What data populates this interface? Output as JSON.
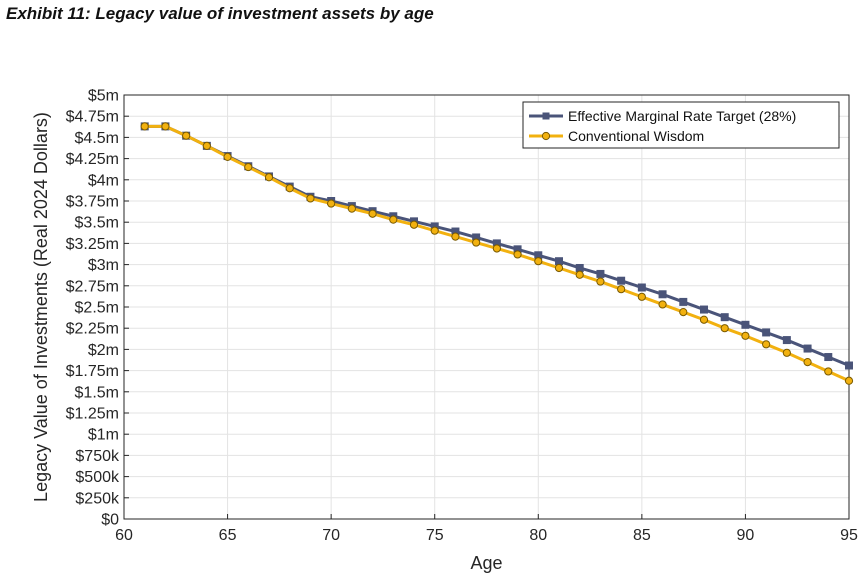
{
  "exhibit_title": "Exhibit 11: Legacy value of investment assets by age",
  "colors": {
    "series_1": "#4a5479",
    "series_2": "#f2b10f",
    "grid": "#e3e3e3",
    "axis": "#262626"
  },
  "chart_data": {
    "type": "line",
    "title": "",
    "xlabel": "Age",
    "ylabel": "Legacy Value of Investments (Real 2024 Dollars)",
    "xlim": [
      60,
      95
    ],
    "ylim": [
      0,
      5000000
    ],
    "grid": true,
    "legend_position": "top-right",
    "x_ticks": [
      60,
      65,
      70,
      75,
      80,
      85,
      90,
      95
    ],
    "x_tick_labels": [
      "60",
      "65",
      "70",
      "75",
      "80",
      "85",
      "90",
      "95"
    ],
    "y_ticks": [
      0,
      250000,
      500000,
      750000,
      1000000,
      1250000,
      1500000,
      1750000,
      2000000,
      2250000,
      2500000,
      2750000,
      3000000,
      3250000,
      3500000,
      3750000,
      4000000,
      4250000,
      4500000,
      4750000,
      5000000
    ],
    "y_tick_labels": [
      "$0",
      "$250k",
      "$500k",
      "$750k",
      "$1m",
      "$1.25m",
      "$1.5m",
      "$1.75m",
      "$2m",
      "$2.25m",
      "$2.5m",
      "$2.75m",
      "$3m",
      "$3.25m",
      "$3.5m",
      "$3.75m",
      "$4m",
      "$4.25m",
      "$4.5m",
      "$4.75m",
      "$5m"
    ],
    "x": [
      61,
      62,
      63,
      64,
      65,
      66,
      67,
      68,
      69,
      70,
      71,
      72,
      73,
      74,
      75,
      76,
      77,
      78,
      79,
      80,
      81,
      82,
      83,
      84,
      85,
      86,
      87,
      88,
      89,
      90,
      91,
      92,
      93,
      94,
      95
    ],
    "series": [
      {
        "name": "Effective Marginal Rate Target (28%)",
        "marker": "square",
        "values": [
          4630000,
          4630000,
          4520000,
          4400000,
          4280000,
          4160000,
          4040000,
          3920000,
          3800000,
          3750000,
          3690000,
          3630000,
          3570000,
          3510000,
          3450000,
          3390000,
          3320000,
          3250000,
          3180000,
          3110000,
          3040000,
          2960000,
          2890000,
          2810000,
          2730000,
          2650000,
          2560000,
          2470000,
          2380000,
          2290000,
          2200000,
          2110000,
          2010000,
          1910000,
          1810000
        ]
      },
      {
        "name": "Conventional Wisdom",
        "marker": "circle",
        "values": [
          4630000,
          4630000,
          4520000,
          4400000,
          4270000,
          4150000,
          4030000,
          3900000,
          3780000,
          3720000,
          3660000,
          3600000,
          3530000,
          3470000,
          3400000,
          3330000,
          3260000,
          3190000,
          3120000,
          3040000,
          2960000,
          2880000,
          2800000,
          2710000,
          2620000,
          2530000,
          2440000,
          2350000,
          2250000,
          2160000,
          2060000,
          1960000,
          1850000,
          1740000,
          1630000
        ]
      }
    ]
  }
}
